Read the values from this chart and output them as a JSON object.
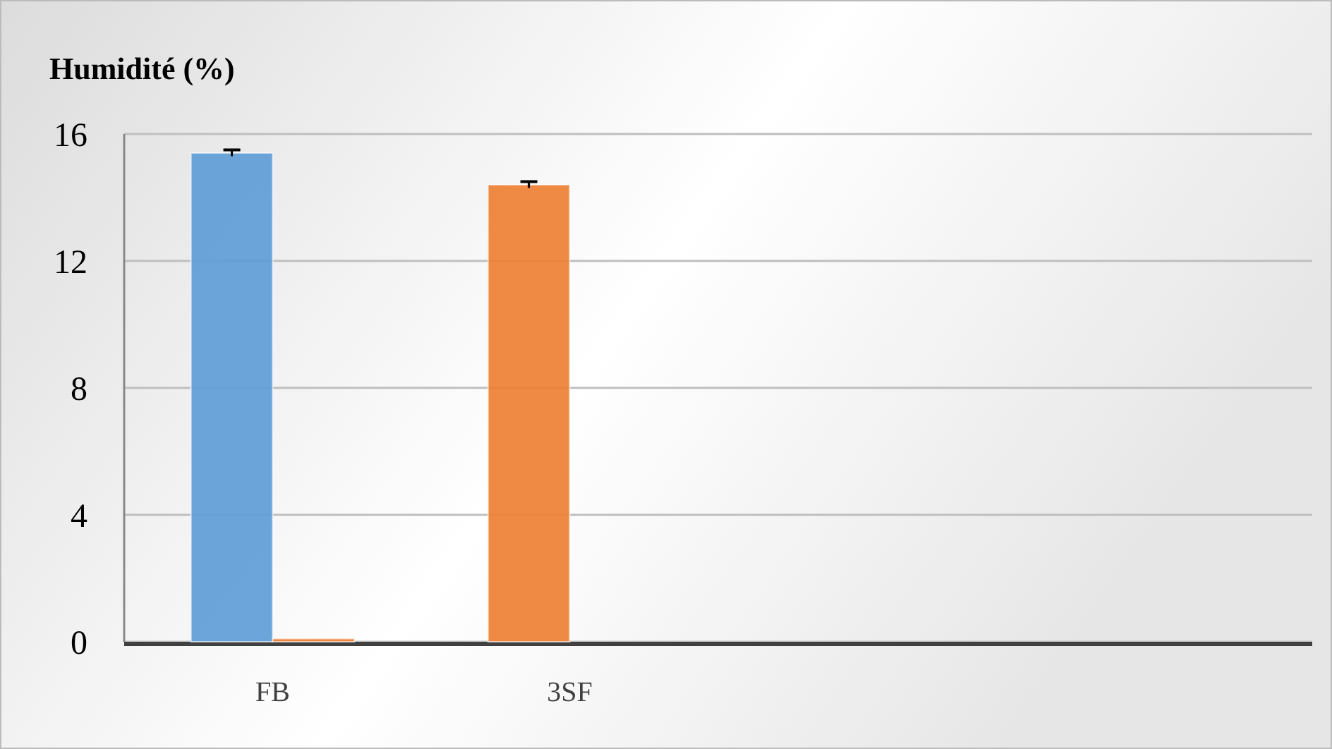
{
  "chart_data": {
    "type": "bar",
    "title": "Humidité (%)",
    "categories": [
      "FB",
      "3SF",
      null,
      null
    ],
    "series": [
      {
        "colors": [
          "#5b9bd5",
          "#ed7d31",
          null,
          null
        ],
        "values": [
          15.4,
          14.4,
          null,
          null
        ],
        "errors": [
          0.1,
          0.1,
          null,
          null
        ]
      },
      {
        "color": "#ed7d31",
        "values": [
          0.1,
          null,
          null,
          null
        ]
      }
    ],
    "ylim": [
      0,
      16
    ],
    "yticks": [
      0,
      4,
      8,
      12,
      16
    ],
    "grid": "y"
  }
}
